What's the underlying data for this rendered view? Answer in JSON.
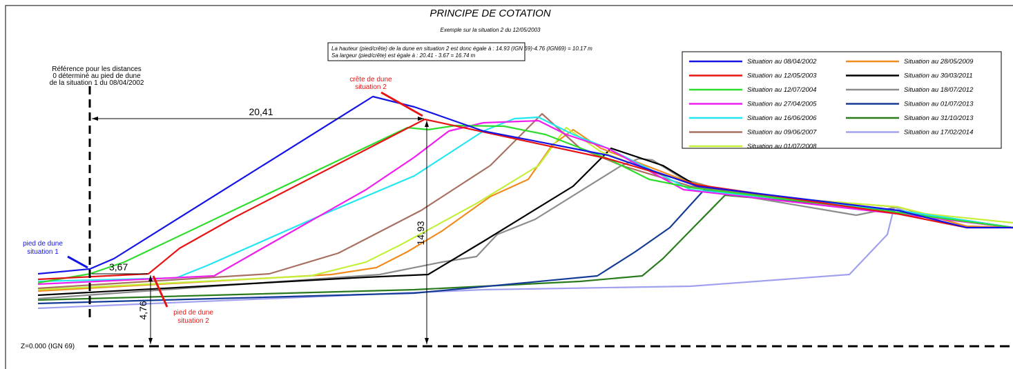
{
  "header": {
    "title": "PRINCIPE DE COTATION",
    "subtitle": "Exemple sur la situation 2 du 12/05/2003"
  },
  "note": [
    "La hauteur (pied/crête) de la dune en situation 2 est donc égale à : 14.93 (IGN 69)-4.76 (IGN69) = 10.17 m",
    "Sa largeur (pied/crête) est  égale à : 20.41 - 3.67 = 16.74 m"
  ],
  "reference": [
    "Référence pour les distances",
    "0 déterminé au pied de dune",
    "de la situation 1 du 08/04/2002"
  ],
  "crest_label": [
    "crête de dune",
    "situation 2"
  ],
  "foot_label_1": [
    "pied de dune",
    "situation 1"
  ],
  "foot_label_2": [
    "pied de dune",
    "situation 2"
  ],
  "dimensions": {
    "width_crest": "20,41",
    "width_foot": "3,67",
    "height_crest": "14,93",
    "height_foot": "4,76"
  },
  "datum": "Z=0.000 (IGN 69)",
  "legend": [
    {
      "name": "Situation au 08/04/2002",
      "color": "#1414e6"
    },
    {
      "name": "Situation au 12/05/2003",
      "color": "#e61414"
    },
    {
      "name": "Situation au 12/07/2004",
      "color": "#2edc2e"
    },
    {
      "name": "Situation au 27/04/2005",
      "color": "#ee1eee"
    },
    {
      "name": "Situation au 16/06/2006",
      "color": "#22e6f0"
    },
    {
      "name": "Situation au 09/06/2007",
      "color": "#a87060"
    },
    {
      "name": "Situation au 01/07/2008",
      "color": "#c4f03c"
    },
    {
      "name": "Situation au 28/05/2009",
      "color": "#f08c1e"
    },
    {
      "name": "Situation au 30/03/2011",
      "color": "#000000"
    },
    {
      "name": "Situation au 18/07/2012",
      "color": "#8c8c8c"
    },
    {
      "name": "Situation au 01/07/2013",
      "color": "#143c96"
    },
    {
      "name": "Situation au 31/10/2013",
      "color": "#2a7a1e"
    },
    {
      "name": "Situation au 17/02/2014",
      "color": "#a0a0f0"
    }
  ]
}
